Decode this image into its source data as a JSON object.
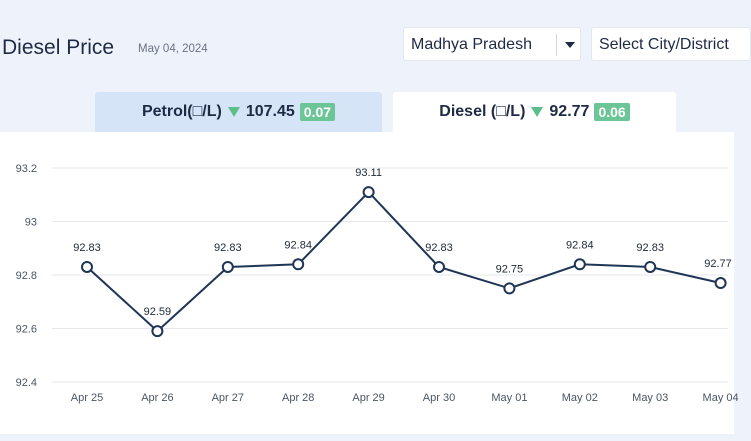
{
  "header": {
    "title": "Diesel Price",
    "date": "May 04, 2024",
    "state_select": "Madhya Pradesh",
    "city_select": "Select City/District"
  },
  "tabs": {
    "petrol": {
      "label": "Petrol(□/L)",
      "price": "107.45",
      "change": "0.07"
    },
    "diesel": {
      "label": "Diesel (□/L)",
      "price": "92.77",
      "change": "0.06"
    }
  },
  "colors": {
    "line": "#1f3556",
    "grid": "#e5e7eb",
    "badge": "#6cc596",
    "down_arrow": "#5cbf8b",
    "active_tab": "#ffffff",
    "inactive_tab": "#d6e4f7"
  },
  "chart_data": {
    "type": "line",
    "title": "",
    "xlabel": "",
    "ylabel": "",
    "categories": [
      "Apr 25",
      "Apr 26",
      "Apr 27",
      "Apr 28",
      "Apr 29",
      "Apr 30",
      "May 01",
      "May 02",
      "May 03",
      "May 04"
    ],
    "series": [
      {
        "values": [
          92.83,
          92.59,
          92.83,
          92.84,
          93.11,
          92.83,
          92.75,
          92.84,
          92.83,
          92.77
        ]
      }
    ],
    "data_labels": [
      "92.83",
      "92.59",
      "92.83",
      "92.84",
      "93.11",
      "92.83",
      "92.75",
      "92.84",
      "92.83",
      "92.77"
    ],
    "ylim": [
      92.4,
      93.2
    ],
    "yticks": [
      92.4,
      92.6,
      92.8,
      93,
      93.2
    ],
    "ytick_labels": [
      "92.4",
      "92.6",
      "92.8",
      "93",
      "93.2"
    ],
    "grid": true,
    "legend": "none"
  }
}
